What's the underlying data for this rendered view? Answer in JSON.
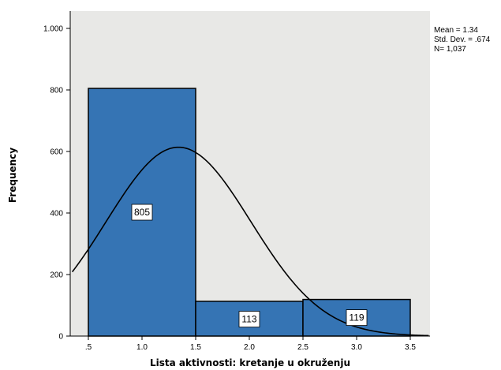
{
  "chart_data": {
    "type": "bar",
    "subtype": "histogram",
    "title": "",
    "xlabel": "Lista aktivnosti: kretanje u okruženju",
    "ylabel": "Frequency",
    "bins": [
      {
        "start": 0.5,
        "end": 1.5,
        "count": 805
      },
      {
        "start": 1.5,
        "end": 2.5,
        "count": 113
      },
      {
        "start": 2.5,
        "end": 3.5,
        "count": 119
      }
    ],
    "values": [
      805,
      113,
      119
    ],
    "bar_labels": [
      "805",
      "113",
      "119"
    ],
    "xlim": [
      0.35,
      3.7
    ],
    "ylim": [
      0,
      1050
    ],
    "x_ticks": [
      0.5,
      1.0,
      1.5,
      2.0,
      2.5,
      3.0,
      3.5
    ],
    "x_tick_labels": [
      ".5",
      "1.0",
      "1.5",
      "2.0",
      "2.5",
      "3.0",
      "3.5"
    ],
    "y_ticks": [
      0,
      200,
      400,
      600,
      800,
      1000
    ],
    "y_tick_labels": [
      "0",
      "200",
      "400",
      "600",
      "800",
      "1.000"
    ],
    "normal_curve": {
      "mean": 1.34,
      "sd": 0.674,
      "n": 1037,
      "bin_width": 1
    },
    "stats": [
      "Mean = 1.34",
      "Std. Dev. = .674",
      "N= 1,037"
    ],
    "grid": false,
    "colors": {
      "plot_background": "#e8e8e6",
      "bar_fill": "#3574b4",
      "bar_stroke": "#000000",
      "curve": "#000000"
    }
  }
}
